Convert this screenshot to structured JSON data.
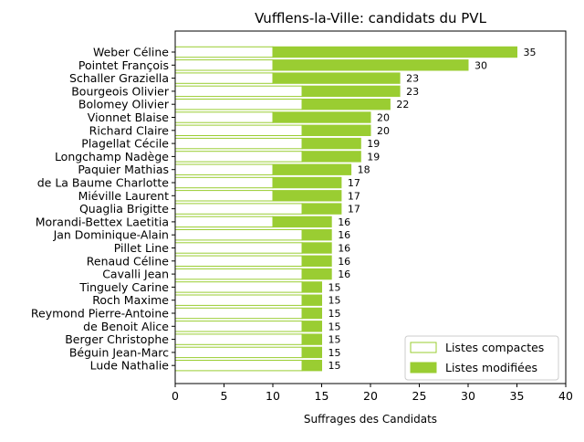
{
  "chart_data": {
    "type": "bar",
    "orientation": "horizontal",
    "stacked": true,
    "title": "Vufflens-la-Ville: candidats du PVL",
    "xlabel": "Suffrages des Candidats",
    "ylabel": "",
    "xlim": [
      0,
      40
    ],
    "xticks": [
      0,
      5,
      10,
      15,
      20,
      25,
      30,
      35,
      40
    ],
    "grid": false,
    "legend_position": "lower-right",
    "categories": [
      "Weber Céline",
      "Pointet François",
      "Schaller Graziella",
      "Bourgeois Olivier",
      "Bolomey Olivier",
      "Vionnet Blaise",
      "Richard Claire",
      "Plagellat Cécile",
      "Longchamp Nadège",
      "Paquier Mathias",
      "de La Baume Charlotte",
      "Miéville Laurent",
      "Quaglia Brigitte",
      "Morandi-Bettex Laetitia",
      "Jan Dominique-Alain",
      "Pillet Line",
      "Renaud Céline",
      "Cavalli Jean",
      "Tinguely Carine",
      "Roch Maxime",
      "Reymond Pierre-Antoine",
      "de Benoit Alice",
      "Berger Christophe",
      "Béguin Jean-Marc",
      "Lude Nathalie"
    ],
    "series": [
      {
        "name": "Listes compactes",
        "color": "#9acd32",
        "fill": "none",
        "values": [
          10,
          10,
          10,
          13,
          13,
          10,
          13,
          13,
          13,
          10,
          10,
          10,
          13,
          10,
          13,
          13,
          13,
          13,
          13,
          13,
          13,
          13,
          13,
          13,
          13
        ]
      },
      {
        "name": "Listes modifiées",
        "color": "#9acd32",
        "fill": "solid",
        "values": [
          25,
          20,
          13,
          10,
          9,
          10,
          7,
          6,
          6,
          8,
          7,
          7,
          4,
          6,
          3,
          3,
          3,
          3,
          2,
          2,
          2,
          2,
          2,
          2,
          2
        ]
      }
    ],
    "totals": [
      35,
      30,
      23,
      23,
      22,
      20,
      20,
      19,
      19,
      18,
      17,
      17,
      17,
      16,
      16,
      16,
      16,
      16,
      15,
      15,
      15,
      15,
      15,
      15,
      15
    ]
  }
}
